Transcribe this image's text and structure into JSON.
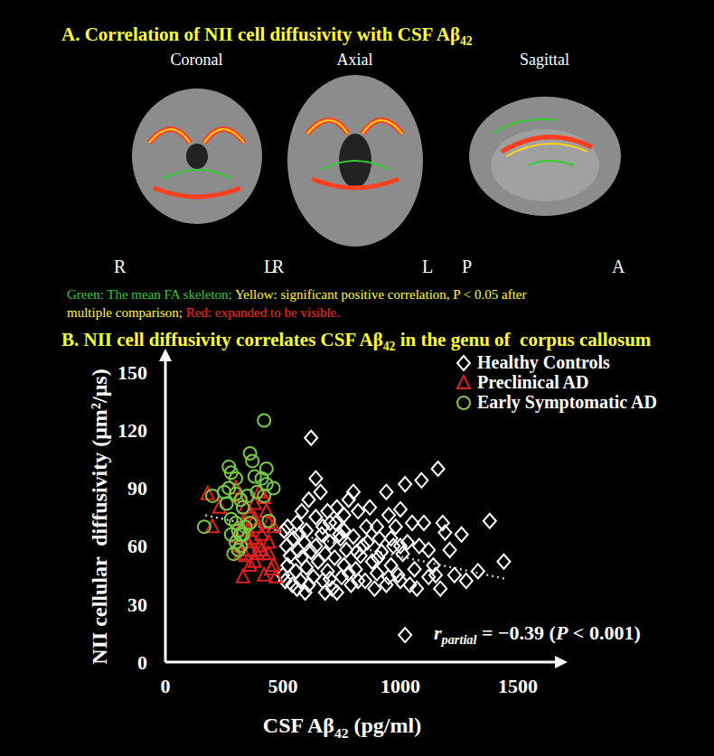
{
  "panel_a": {
    "title": {
      "parts": [
        {
          "text": "A. Correlation of NII cell diffusivity with CSF Aβ"
        },
        {
          "text": "42",
          "sub": true
        }
      ]
    },
    "views": [
      {
        "label": "Coronal",
        "orientation_labels": [
          "R",
          "L"
        ]
      },
      {
        "label": "Axial",
        "orientation_labels": [
          "R",
          "L"
        ]
      },
      {
        "label": "Sagittal",
        "orientation_labels": [
          "P",
          "A"
        ]
      }
    ],
    "legend_lines": [
      [
        {
          "text": "Green: The mean FA skeleton; ",
          "color": "#33cc33"
        },
        {
          "text": "Yellow: significant positive correlation, P < 0.05 after",
          "color": "#ffff33"
        }
      ],
      [
        {
          "text": "multiple comparison; ",
          "color": "#ffff33"
        },
        {
          "text": "Red: expanded to be visible.",
          "color": "#ff2a1a"
        }
      ]
    ]
  },
  "chart_data": {
    "type": "scatter",
    "title": {
      "parts": [
        {
          "text": "B. NII cell diffusivity correlates CSF Aβ"
        },
        {
          "text": "42",
          "sub": true
        },
        {
          "text": " in the genu of  corpus callosum"
        }
      ]
    },
    "x_label": {
      "parts": [
        {
          "text": "CSF Aβ"
        },
        {
          "text": "42",
          "sub": true
        },
        {
          "text": " (pg/ml)"
        }
      ]
    },
    "y_label": "NII cellular  diffusivity (μm²/μs)",
    "xlim": [
      0,
      1500
    ],
    "xticks": [
      0,
      500,
      1000,
      1500
    ],
    "ylim": [
      0,
      150
    ],
    "yticks": [
      0,
      30,
      60,
      90,
      120,
      150
    ],
    "legend": "upper right",
    "series": [
      {
        "name": "Healthy Controls",
        "color": "#ffffff",
        "marker": "diamond",
        "x": [
          620,
          640,
          610,
          660,
          1160,
          1020,
          1090,
          940,
          1000,
          800,
          780,
          730,
          690,
          560,
          520,
          570,
          600,
          640,
          700,
          760,
          820,
          870,
          900,
          950,
          980,
          1050,
          1100,
          1180,
          1190,
          1260,
          1380,
          1440,
          1330,
          1280,
          1210,
          1170,
          1120,
          1080,
          1030,
          1010,
          990,
          960,
          940,
          920,
          900,
          880,
          860,
          850,
          830,
          810,
          800,
          790,
          770,
          760,
          750,
          740,
          720,
          710,
          700,
          690,
          680,
          670,
          665,
          650,
          640,
          630,
          620,
          610,
          600,
          590,
          580,
          575,
          565,
          555,
          545,
          540,
          530,
          520,
          515,
          510,
          505,
          500,
          560,
          700,
          730,
          760,
          780,
          820,
          840,
          890,
          910,
          970,
          1000,
          1040,
          1060,
          1140,
          1230,
          1020,
          670,
          725,
          855,
          580,
          745,
          815,
          905,
          950,
          1000,
          1120,
          960,
          1070,
          680,
          595,
          1150
        ],
        "y": [
          116,
          95,
          84,
          88,
          100,
          92,
          94,
          88,
          79,
          88,
          84,
          80,
          78,
          72,
          70,
          66,
          68,
          75,
          72,
          76,
          78,
          80,
          70,
          76,
          70,
          72,
          72,
          72,
          67,
          66,
          73,
          52,
          47,
          42,
          58,
          38,
          58,
          60,
          62,
          56,
          45,
          50,
          40,
          57,
          46,
          52,
          62,
          42,
          55,
          48,
          65,
          40,
          58,
          50,
          44,
          66,
          54,
          38,
          62,
          47,
          56,
          42,
          66,
          52,
          60,
          44,
          57,
          40,
          49,
          62,
          54,
          42,
          58,
          47,
          64,
          40,
          55,
          50,
          60,
          42,
          68,
          45,
          38,
          43,
          36,
          68,
          46,
          42,
          60,
          38,
          64,
          60,
          42,
          40,
          48,
          50,
          45,
          14,
          70,
          72,
          70,
          78,
          64,
          57,
          54,
          44,
          60,
          44,
          64,
          38,
          36,
          36,
          45
        ]
      },
      {
        "name": "Preclinical AD",
        "color": "#e0201f",
        "marker": "triangle",
        "x": [
          180,
          230,
          200,
          300,
          320,
          340,
          360,
          380,
          400,
          420,
          330,
          350,
          370,
          390,
          410,
          440,
          460,
          310,
          340,
          360,
          380,
          400,
          420,
          440,
          460,
          330,
          420,
          450,
          470,
          300,
          350,
          380,
          430,
          360,
          410,
          390,
          440,
          320
        ],
        "y": [
          87,
          80,
          70,
          90,
          86,
          80,
          77,
          82,
          88,
          85,
          72,
          68,
          64,
          70,
          66,
          72,
          70,
          60,
          55,
          58,
          52,
          60,
          56,
          62,
          50,
          44,
          45,
          48,
          44,
          65,
          62,
          74,
          78,
          50,
          58,
          56,
          56,
          56
        ]
      },
      {
        "name": "Early Symptomatic AD",
        "color": "#7ac943",
        "marker": "circle",
        "x": [
          420,
          360,
          370,
          270,
          280,
          300,
          380,
          410,
          430,
          300,
          320,
          270,
          250,
          200,
          330,
          260,
          280,
          300,
          310,
          320,
          340,
          360,
          300,
          310,
          320,
          290,
          330,
          165,
          440,
          420,
          460,
          390,
          280,
          350,
          430
        ],
        "y": [
          125,
          108,
          104,
          101,
          98,
          95,
          96,
          95,
          92,
          87,
          84,
          90,
          88,
          86,
          80,
          82,
          74,
          72,
          68,
          66,
          70,
          72,
          62,
          58,
          60,
          56,
          66,
          70,
          73,
          86,
          90,
          88,
          66,
          86,
          100
        ]
      }
    ],
    "trend_line": {
      "x": [
        170,
        1450
      ],
      "y": [
        76,
        43
      ],
      "color": "#cccccc",
      "line_style": "dotted"
    },
    "annotation": {
      "parts": [
        {
          "text": "r",
          "italic": true
        },
        {
          "text": "partial",
          "sub": true,
          "italic": true
        },
        {
          "text": " = −0.39 ("
        },
        {
          "text": "P",
          "italic": true
        },
        {
          "text": " < 0.001)"
        }
      ]
    }
  }
}
